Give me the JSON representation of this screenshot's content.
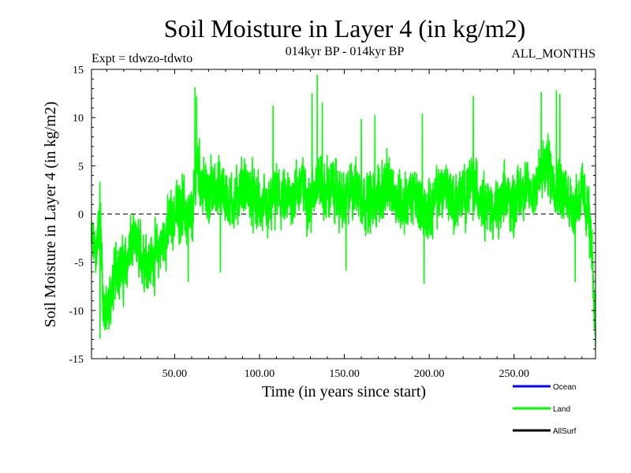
{
  "chart_data": {
    "type": "line",
    "title": "Soil Moisture in Layer 4 (in kg/m2)",
    "subtitle_left": "Expt = tdwzo-tdwto",
    "subtitle_center": "014kyr BP - 014kyr BP",
    "subtitle_right": "ALL_MONTHS",
    "xlabel": "Time (in years since start)",
    "ylabel": "Soil Moisture in Layer 4 (in kg/m2)",
    "xlim": [
      1,
      298
    ],
    "ylim": [
      -15,
      15
    ],
    "x_ticks": [
      50,
      100,
      150,
      200,
      250
    ],
    "x_tick_labels": [
      "50.00",
      "100.00",
      "150.00",
      "200.00",
      "250.00"
    ],
    "y_ticks": [
      -15,
      -10,
      -5,
      0,
      5,
      10,
      15
    ],
    "y_tick_labels": [
      "-15",
      "-10",
      "-5",
      "0",
      "5",
      "10",
      "15"
    ],
    "zero_line": "dashed",
    "grid": false,
    "legend_position": "bottom-right",
    "legend": [
      {
        "name": "Ocean",
        "color": "#0000ff"
      },
      {
        "name": "Land",
        "color": "#00ff00"
      },
      {
        "name": "AllSurf",
        "color": "#000000"
      }
    ],
    "series": [
      {
        "name": "Land",
        "color": "#00ff00",
        "points_per_year": 12,
        "anchor_x": [
          1,
          4,
          6,
          8,
          10,
          13,
          16,
          20,
          25,
          30,
          35,
          40,
          45,
          50,
          55,
          58,
          61,
          63,
          66,
          70,
          75,
          80,
          85,
          90,
          95,
          100,
          105,
          110,
          115,
          120,
          125,
          130,
          134,
          138,
          142,
          146,
          150,
          155,
          160,
          165,
          170,
          175,
          180,
          185,
          190,
          195,
          200,
          205,
          210,
          215,
          220,
          225,
          230,
          235,
          240,
          245,
          250,
          255,
          260,
          265,
          270,
          275,
          280,
          285,
          290,
          294,
          296,
          298
        ],
        "anchor_y": [
          -3,
          -4,
          1,
          -9,
          -11,
          -8,
          -5,
          -6,
          -3,
          -4,
          -5,
          -4,
          -2,
          0,
          1,
          -1,
          0,
          6,
          3,
          2,
          3,
          2,
          1,
          3,
          2,
          1,
          0,
          2,
          1,
          2,
          3,
          1,
          4,
          2,
          3,
          2,
          1,
          3,
          2,
          1,
          2,
          3,
          2,
          1,
          2,
          1,
          0,
          2,
          3,
          1,
          2,
          3,
          2,
          1,
          0,
          2,
          1,
          3,
          2,
          4,
          5,
          3,
          2,
          1,
          2,
          0,
          -5,
          -12
        ],
        "amplitude": 3.4,
        "peaks": [
          [
            6,
            -12.9
          ],
          [
            9,
            -12
          ],
          [
            11,
            -11
          ],
          [
            62,
            13.1
          ],
          [
            63,
            12.2
          ],
          [
            134,
            14.4
          ],
          [
            131,
            12.5
          ],
          [
            137,
            11.5
          ],
          [
            108,
            11.2
          ],
          [
            160,
            9.8
          ],
          [
            168,
            10.2
          ],
          [
            196,
            10.4
          ],
          [
            226,
            12.2
          ],
          [
            266,
            12.6
          ],
          [
            275,
            12.8
          ],
          [
            277,
            12.4
          ],
          [
            298,
            -13.8
          ],
          [
            197,
            -7.2
          ],
          [
            151,
            -5.8
          ],
          [
            58,
            -7
          ],
          [
            77,
            -6
          ],
          [
            286,
            -7
          ]
        ],
        "y_min": -13.8,
        "y_max": 14.4
      },
      {
        "name": "Ocean",
        "color": "#0000ff",
        "values": []
      },
      {
        "name": "AllSurf",
        "color": "#000000",
        "values": []
      }
    ]
  }
}
